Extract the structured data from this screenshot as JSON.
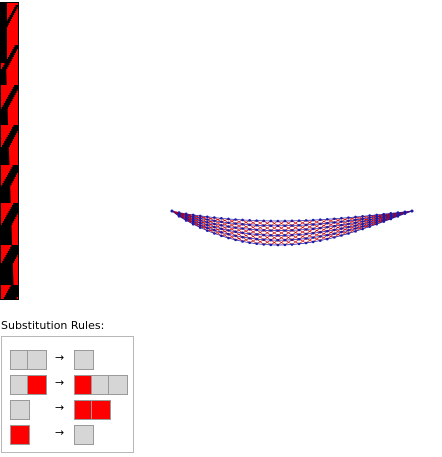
{
  "rules_title": "Substitution Rules:",
  "arrow_glyph": "→",
  "colors": {
    "red_cell": "#ff0000",
    "gray_cell": "#d6d6d6",
    "network_nodes": "#1a1aaa",
    "network_edges_red": "#cc0000"
  },
  "rules": [
    {
      "lhs": [
        "gray",
        "gray"
      ],
      "rhs": [
        "gray"
      ]
    },
    {
      "lhs": [
        "gray",
        "red"
      ],
      "rhs": [
        "red",
        "gray",
        "gray"
      ]
    },
    {
      "lhs": [
        "gray"
      ],
      "rhs": [
        "red",
        "red"
      ]
    },
    {
      "lhs": [
        "red"
      ],
      "rhs": [
        "gray"
      ]
    }
  ]
}
